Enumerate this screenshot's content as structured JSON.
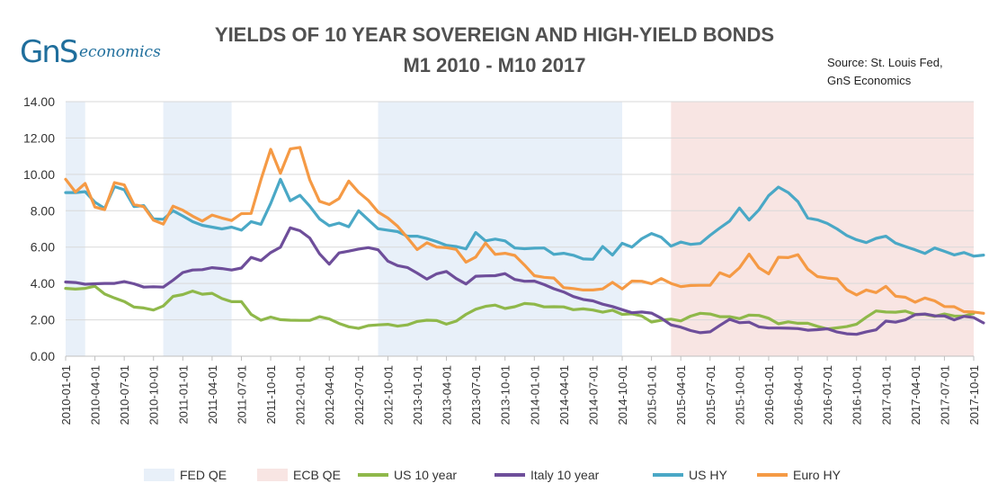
{
  "logo": {
    "gns": "GnS",
    "eco": "economics"
  },
  "title_line1": "YIELDS OF 10 YEAR SOVEREIGN AND HIGH-YIELD BONDS",
  "title_line2": "M1 2010 - M10 2017",
  "source_line1": "Source: St. Louis Fed,",
  "source_line2": "GnS Economics",
  "colors": {
    "fed_qe": "#e8f0f9",
    "ecb_qe": "#f8e5e3",
    "us10": "#8fb84a",
    "italy10": "#6e4e9a",
    "ushy": "#4aa8c6",
    "eurohy": "#f59a45",
    "axis_text": "#333333",
    "grid": "#d9d9d9"
  },
  "legend": [
    {
      "label": "FED QE",
      "kind": "band",
      "color": "#e8f0f9"
    },
    {
      "label": "ECB QE",
      "kind": "band",
      "color": "#f8e5e3"
    },
    {
      "label": "US 10 year",
      "kind": "line",
      "color": "#8fb84a"
    },
    {
      "label": "Italy 10 year",
      "kind": "line",
      "color": "#6e4e9a"
    },
    {
      "label": "US HY",
      "kind": "line",
      "color": "#4aa8c6"
    },
    {
      "label": "Euro HY",
      "kind": "line",
      "color": "#f59a45"
    }
  ],
  "chart_data": {
    "type": "line",
    "title": "YIELDS OF 10 YEAR SOVEREIGN AND HIGH-YIELD BONDS",
    "subtitle": "M1 2010 - M10 2017",
    "xlabel": "",
    "ylabel": "",
    "x_start": "2010-01-01",
    "x_end": "2017-10-01",
    "ylim": [
      0,
      14
    ],
    "yticks": [
      "0.00",
      "2.00",
      "4.00",
      "6.00",
      "8.00",
      "10.00",
      "12.00",
      "14.00"
    ],
    "xticks": [
      "2010-01-01",
      "2010-04-01",
      "2010-07-01",
      "2010-10-01",
      "2011-01-01",
      "2011-04-01",
      "2011-07-01",
      "2011-10-01",
      "2012-01-01",
      "2012-04-01",
      "2012-07-01",
      "2012-10-01",
      "2013-01-01",
      "2013-04-01",
      "2013-07-01",
      "2013-10-01",
      "2014-01-01",
      "2014-04-01",
      "2014-07-01",
      "2014-10-01",
      "2015-01-01",
      "2015-04-01",
      "2015-07-01",
      "2015-10-01",
      "2016-01-01",
      "2016-04-01",
      "2016-07-01",
      "2016-10-01",
      "2017-01-01",
      "2017-04-01",
      "2017-07-01",
      "2017-10-01"
    ],
    "grid": true,
    "legend_position": "bottom",
    "bands": [
      {
        "name": "FED QE",
        "start": "2010-01-01",
        "end": "2010-03-01"
      },
      {
        "name": "FED QE",
        "start": "2010-11-01",
        "end": "2011-06-01"
      },
      {
        "name": "FED QE",
        "start": "2012-09-01",
        "end": "2014-10-01"
      },
      {
        "name": "ECB QE",
        "start": "2015-03-01",
        "end": "2017-10-01"
      }
    ],
    "series": [
      {
        "name": "US 10 year",
        "values": [
          3.73,
          3.69,
          3.73,
          3.85,
          3.42,
          3.2,
          3.01,
          2.7,
          2.65,
          2.54,
          2.76,
          3.29,
          3.39,
          3.58,
          3.41,
          3.46,
          3.17,
          3.0,
          3.0,
          2.3,
          1.98,
          2.15,
          2.01,
          1.98,
          1.97,
          1.97,
          2.17,
          2.05,
          1.8,
          1.62,
          1.53,
          1.68,
          1.72,
          1.75,
          1.65,
          1.72,
          1.91,
          1.98,
          1.96,
          1.76,
          1.93,
          2.3,
          2.58,
          2.74,
          2.81,
          2.62,
          2.72,
          2.9,
          2.86,
          2.71,
          2.72,
          2.71,
          2.56,
          2.6,
          2.54,
          2.42,
          2.53,
          2.3,
          2.33,
          2.21,
          1.88,
          1.98,
          2.04,
          1.94,
          2.2,
          2.36,
          2.32,
          2.17,
          2.17,
          2.07,
          2.26,
          2.24,
          2.09,
          1.78,
          1.89,
          1.81,
          1.81,
          1.64,
          1.5,
          1.56,
          1.63,
          1.76,
          2.14,
          2.49,
          2.43,
          2.42,
          2.48,
          2.3,
          2.3,
          2.19,
          2.32,
          2.21,
          2.2,
          2.36
        ]
      },
      {
        "name": "Italy 10 year",
        "values": [
          4.08,
          4.05,
          3.96,
          3.98,
          4.0,
          4.0,
          4.1,
          3.98,
          3.8,
          3.82,
          3.8,
          4.18,
          4.6,
          4.74,
          4.76,
          4.87,
          4.82,
          4.74,
          4.85,
          5.43,
          5.26,
          5.7,
          5.99,
          7.06,
          6.9,
          6.5,
          5.63,
          5.06,
          5.68,
          5.78,
          5.89,
          5.97,
          5.85,
          5.23,
          4.98,
          4.88,
          4.57,
          4.24,
          4.53,
          4.66,
          4.27,
          3.97,
          4.4,
          4.42,
          4.43,
          4.54,
          4.22,
          4.12,
          4.13,
          3.94,
          3.71,
          3.53,
          3.28,
          3.12,
          3.04,
          2.86,
          2.73,
          2.56,
          2.39,
          2.43,
          2.37,
          2.09,
          1.72,
          1.6,
          1.41,
          1.29,
          1.34,
          1.69,
          2.03,
          1.84,
          1.87,
          1.62,
          1.55,
          1.55,
          1.54,
          1.52,
          1.43,
          1.46,
          1.51,
          1.33,
          1.23,
          1.2,
          1.34,
          1.45,
          1.93,
          1.87,
          2.0,
          2.28,
          2.32,
          2.22,
          2.21,
          2.0,
          2.19,
          2.12,
          1.83
        ]
      },
      {
        "name": "US HY",
        "values": [
          9.0,
          9.0,
          9.05,
          8.47,
          8.13,
          9.33,
          9.15,
          8.23,
          8.28,
          7.55,
          7.53,
          8.0,
          7.71,
          7.4,
          7.2,
          7.1,
          7.0,
          7.1,
          6.93,
          7.4,
          7.25,
          8.4,
          9.73,
          8.55,
          8.85,
          8.25,
          7.55,
          7.18,
          7.32,
          7.12,
          8.0,
          7.5,
          7.01,
          6.93,
          6.85,
          6.6,
          6.6,
          6.47,
          6.3,
          6.1,
          6.03,
          5.9,
          6.8,
          6.34,
          6.44,
          6.34,
          5.95,
          5.91,
          5.94,
          5.95,
          5.6,
          5.66,
          5.55,
          5.35,
          5.33,
          6.03,
          5.56,
          6.21,
          6.0,
          6.46,
          6.75,
          6.54,
          6.05,
          6.28,
          6.15,
          6.2,
          6.65,
          7.05,
          7.43,
          8.15,
          7.49,
          8.05,
          8.83,
          9.3,
          9.0,
          8.5,
          7.6,
          7.5,
          7.3,
          7.0,
          6.64,
          6.4,
          6.25,
          6.48,
          6.6,
          6.22,
          6.03,
          5.85,
          5.65,
          5.95,
          5.77,
          5.57,
          5.7,
          5.5,
          5.56
        ]
      },
      {
        "name": "Euro HY",
        "values": [
          9.73,
          9.03,
          9.5,
          8.2,
          8.06,
          9.55,
          9.42,
          8.34,
          8.22,
          7.48,
          7.26,
          8.25,
          8.03,
          7.7,
          7.43,
          7.76,
          7.6,
          7.46,
          7.84,
          7.85,
          9.7,
          11.38,
          10.06,
          11.4,
          11.48,
          9.7,
          8.52,
          8.34,
          8.67,
          9.63,
          9.02,
          8.57,
          7.93,
          7.6,
          7.15,
          6.52,
          5.86,
          6.24,
          6.0,
          5.97,
          5.87,
          5.17,
          5.45,
          6.23,
          5.6,
          5.66,
          5.54,
          5.01,
          4.43,
          4.34,
          4.3,
          3.77,
          3.72,
          3.64,
          3.64,
          3.7,
          4.06,
          3.7,
          4.13,
          4.12,
          3.98,
          4.27,
          4.0,
          3.83,
          3.89,
          3.9,
          3.9,
          4.59,
          4.38,
          4.86,
          5.61,
          4.86,
          4.53,
          5.44,
          5.42,
          5.58,
          4.79,
          4.38,
          4.3,
          4.25,
          3.65,
          3.37,
          3.64,
          3.5,
          3.84,
          3.3,
          3.24,
          2.97,
          3.2,
          3.04,
          2.73,
          2.72,
          2.45,
          2.43,
          2.36
        ]
      }
    ]
  }
}
